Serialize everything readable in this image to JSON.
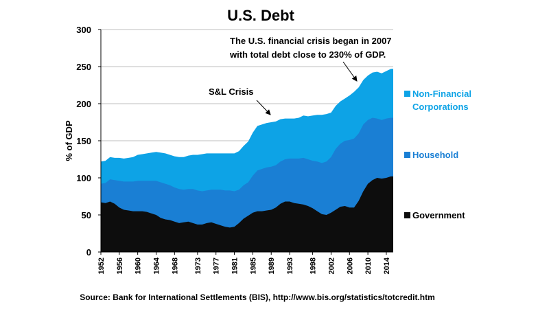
{
  "chart_data": {
    "type": "area",
    "title": "U.S. Debt",
    "xlabel": "",
    "ylabel": "% of GDP",
    "xlim": [
      1952,
      2015.5
    ],
    "ylim": [
      0,
      300
    ],
    "yticks": [
      0,
      50,
      100,
      150,
      200,
      250,
      300
    ],
    "xticks": [
      "1952",
      "1956",
      "1960",
      "1964",
      "1968",
      "1973",
      "1977",
      "1981",
      "1985",
      "1989",
      "1993",
      "1998",
      "2002",
      "2006",
      "2010",
      "2014"
    ],
    "grid": true,
    "stacked": true,
    "x": [
      1952,
      1953,
      1954,
      1955,
      1956,
      1957,
      1958,
      1959,
      1960,
      1961,
      1962,
      1963,
      1964,
      1965,
      1966,
      1967,
      1968,
      1969,
      1970,
      1971,
      1972,
      1973,
      1974,
      1975,
      1976,
      1977,
      1978,
      1979,
      1980,
      1981,
      1982,
      1983,
      1984,
      1985,
      1986,
      1987,
      1988,
      1989,
      1990,
      1991,
      1992,
      1993,
      1994,
      1995,
      1996,
      1997,
      1998,
      1999,
      2000,
      2001,
      2002,
      2003,
      2004,
      2005,
      2006,
      2007,
      2008,
      2009,
      2010,
      2011,
      2012,
      2013,
      2014,
      2015
    ],
    "series": [
      {
        "name": "Government",
        "color": "#0d0d0d",
        "values": [
          67,
          66,
          68,
          65,
          60,
          57,
          56,
          55,
          55,
          55,
          54,
          52,
          50,
          46,
          44,
          43,
          41,
          39,
          40,
          41,
          39,
          37,
          37,
          39,
          40,
          38,
          36,
          34,
          33,
          34,
          39,
          45,
          49,
          53,
          55,
          55,
          56,
          57,
          60,
          65,
          68,
          68,
          66,
          65,
          64,
          62,
          59,
          55,
          51,
          50,
          53,
          57,
          61,
          62,
          60,
          60,
          69,
          82,
          92,
          97,
          100,
          99,
          100,
          102
        ]
      },
      {
        "name": "Household",
        "color": "#1a7fd4",
        "values": [
          25,
          27,
          30,
          32,
          36,
          38,
          39,
          40,
          41,
          41,
          42,
          44,
          46,
          48,
          48,
          47,
          46,
          46,
          44,
          44,
          46,
          46,
          45,
          44,
          44,
          46,
          48,
          49,
          50,
          48,
          45,
          45,
          45,
          50,
          55,
          57,
          58,
          58,
          57,
          57,
          57,
          58,
          60,
          61,
          63,
          63,
          64,
          67,
          69,
          72,
          75,
          82,
          85,
          88,
          91,
          93,
          91,
          90,
          86,
          84,
          80,
          79,
          80,
          79
        ]
      },
      {
        "name": "Non-Financial Corporations",
        "color": "#0da3e6",
        "values": [
          30,
          30,
          30,
          30,
          31,
          31,
          32,
          33,
          35,
          36,
          37,
          38,
          39,
          40,
          41,
          41,
          42,
          43,
          44,
          45,
          46,
          48,
          50,
          50,
          49,
          49,
          49,
          50,
          50,
          51,
          52,
          53,
          55,
          58,
          60,
          60,
          60,
          60,
          59,
          57,
          55,
          54,
          54,
          55,
          57,
          58,
          61,
          63,
          65,
          64,
          60,
          58,
          57,
          57,
          60,
          63,
          62,
          60,
          60,
          61,
          63,
          63,
          64,
          66
        ]
      }
    ],
    "legend_placement": "right",
    "annotations": [
      {
        "text": "S&L Crisis",
        "x": 1989,
        "y": 183
      },
      {
        "text": "The U.S. financial crisis began in 2007\nwith total debt close to 230% of GDP.",
        "x": 2008,
        "y": 230
      }
    ],
    "source": "Source: Bank for International Settlements (BIS), http://www.bis.org/statistics/totcredit.htm"
  },
  "legend": {
    "non_financial_line1": "Non-Financial",
    "non_financial_line2": "Corporations",
    "household": "Household",
    "government": "Government"
  },
  "annotation_text": {
    "sl_crisis": "S&L Crisis",
    "crisis_line1": "The U.S. financial crisis began in 2007",
    "crisis_line2": "with total debt close to 230% of GDP."
  }
}
